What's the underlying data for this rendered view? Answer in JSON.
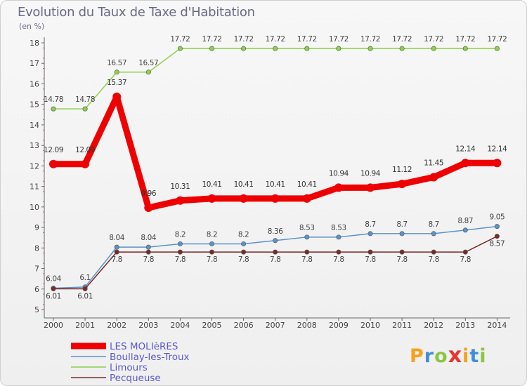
{
  "title": "Evolution du Taux de Taxe d'Habitation",
  "unit": "(en %)",
  "logo": {
    "text": "Proxiti",
    "letters": [
      "P",
      "r",
      "o",
      "x",
      "i",
      "t",
      "i"
    ],
    "colors": [
      "#f7a21a",
      "#3f8fd6",
      "#8ac640",
      "#e8352f",
      "#f7a21a",
      "#3f8fd6",
      "#8ac640"
    ]
  },
  "chart_data": {
    "type": "line",
    "title": "Evolution du Taux de Taxe d'Habitation",
    "ylabel": "(en %)",
    "xlabel": "",
    "ylim": [
      5,
      18
    ],
    "yticks": [
      5,
      6,
      7,
      8,
      9,
      10,
      11,
      12,
      13,
      14,
      15,
      16,
      17,
      18
    ],
    "grid": false,
    "legend_position": "bottom-left",
    "x": [
      "2000",
      "2001",
      "2002",
      "2003",
      "2004",
      "2005",
      "2006",
      "2007",
      "2008",
      "2009",
      "2010",
      "2011",
      "2012",
      "2013",
      "2014"
    ],
    "series": [
      {
        "name": "LES MOLIèRES",
        "color": "#ee0000",
        "thick": true,
        "values": [
          12.09,
          12.09,
          15.37,
          9.96,
          10.31,
          10.41,
          10.41,
          10.41,
          10.41,
          10.94,
          10.94,
          11.12,
          11.45,
          12.14,
          12.14
        ],
        "labels": [
          "12.09",
          "12.09",
          "15.37",
          "9.96",
          "10.31",
          "10.41",
          "10.41",
          "10.41",
          "10.41",
          "10.94",
          "10.94",
          "11.12",
          "11.45",
          "12.14",
          "12.14"
        ]
      },
      {
        "name": "Boullay-les-Troux",
        "color": "#5b93c9",
        "thick": false,
        "values": [
          6.04,
          6.1,
          8.04,
          8.04,
          8.2,
          8.2,
          8.2,
          8.36,
          8.53,
          8.53,
          8.7,
          8.7,
          8.7,
          8.87,
          9.05
        ],
        "labels": [
          "6.04",
          "6.1",
          "8.04",
          "8.04",
          "8.2",
          "8.2",
          "8.2",
          "8.36",
          "8.53",
          "8.53",
          "8.7",
          "8.7",
          "8.7",
          "8.87",
          "9.05"
        ]
      },
      {
        "name": "Limours",
        "color": "#8ed04c",
        "thick": false,
        "values": [
          14.78,
          14.78,
          16.57,
          16.57,
          17.72,
          17.72,
          17.72,
          17.72,
          17.72,
          17.72,
          17.72,
          17.72,
          17.72,
          17.72,
          17.72
        ],
        "labels": [
          "14.78",
          "14.78",
          "16.57",
          "16.57",
          "17.72",
          "17.72",
          "17.72",
          "17.72",
          "17.72",
          "17.72",
          "17.72",
          "17.72",
          "17.72",
          "17.72",
          "17.72"
        ]
      },
      {
        "name": "Pecqueuse",
        "color": "#7a2a2a",
        "thick": false,
        "values": [
          6.01,
          6.01,
          7.8,
          7.8,
          7.8,
          7.8,
          7.8,
          7.8,
          7.8,
          7.8,
          7.8,
          7.8,
          7.8,
          7.8,
          8.57
        ],
        "labels": [
          "6.01",
          "6.01",
          "7.8",
          "7.8",
          "7.8",
          "7.8",
          "7.8",
          "7.8",
          "7.8",
          "7.8",
          "7.8",
          "7.8",
          "7.8",
          "7.8",
          "8.57"
        ]
      }
    ]
  }
}
